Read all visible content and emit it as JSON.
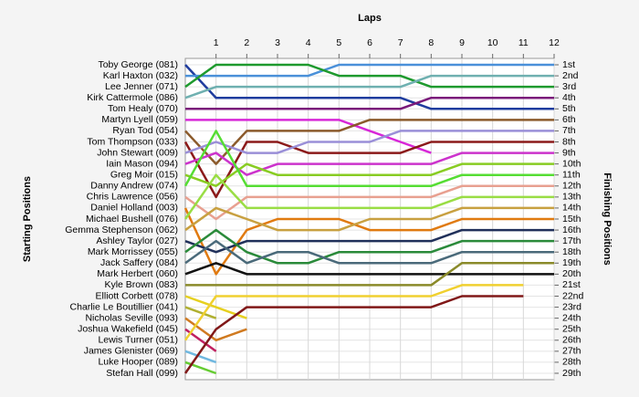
{
  "chart_data": {
    "type": "lap",
    "title": "Laps",
    "y_label_left": "Starting Positions",
    "y_label_right": "Finishing Positions",
    "x": [
      0,
      1,
      2,
      3,
      4,
      5,
      6,
      7,
      8,
      9,
      10,
      11,
      12
    ],
    "xlim": [
      0,
      12
    ],
    "xticks": [
      1,
      2,
      3,
      4,
      5,
      6,
      7,
      8,
      9,
      10,
      11,
      12
    ],
    "ylim": [
      1,
      29
    ],
    "grid": true,
    "positions": [
      "1st",
      "2nd",
      "3rd",
      "4th",
      "5th",
      "6th",
      "7th",
      "8th",
      "9th",
      "10th",
      "11th",
      "12th",
      "13th",
      "14th",
      "15th",
      "16th",
      "17th",
      "18th",
      "19th",
      "20th",
      "21st",
      "22nd",
      "23rd",
      "24th",
      "25th",
      "26th",
      "27th",
      "28th",
      "29th"
    ],
    "series": [
      {
        "name": "Toby George (081)",
        "color": "#1f3c9e",
        "values": [
          1,
          4,
          4,
          4,
          4,
          4,
          4,
          4,
          5,
          5,
          5,
          5,
          5
        ]
      },
      {
        "name": "Karl Haxton (032)",
        "color": "#4a90d9",
        "values": [
          2,
          2,
          2,
          2,
          2,
          1,
          1,
          1,
          1,
          1,
          1,
          1,
          1
        ]
      },
      {
        "name": "Lee Jenner (071)",
        "color": "#1e9a2e",
        "values": [
          3,
          1,
          1,
          1,
          1,
          2,
          2,
          2,
          3,
          3,
          3,
          3,
          3
        ]
      },
      {
        "name": "Kirk Cattermole (086)",
        "color": "#6fb0b0",
        "values": [
          4,
          3,
          3,
          3,
          3,
          3,
          3,
          3,
          2,
          2,
          2,
          2,
          2
        ]
      },
      {
        "name": "Tom Healy (070)",
        "color": "#7a1a7a",
        "values": [
          5,
          5,
          5,
          5,
          5,
          5,
          5,
          5,
          4,
          4,
          4,
          4,
          4
        ]
      },
      {
        "name": "Martyn Lyell (059)",
        "color": "#d827d8",
        "values": [
          6,
          6,
          6,
          6,
          6,
          6,
          7,
          8,
          9,
          null,
          null,
          null,
          null
        ]
      },
      {
        "name": "Ryan Tod (054)",
        "color": "#8b5a2b",
        "values": [
          7,
          10,
          7,
          7,
          7,
          7,
          6,
          6,
          6,
          6,
          6,
          6,
          6
        ]
      },
      {
        "name": "Tom Thompson (033)",
        "color": "#8b1a1a",
        "values": [
          8,
          13,
          8,
          8,
          9,
          9,
          9,
          9,
          8,
          8,
          8,
          8,
          8
        ]
      },
      {
        "name": "John Stewart (009)",
        "color": "#9a8fd8",
        "values": [
          9,
          8,
          9,
          9,
          8,
          8,
          8,
          7,
          7,
          7,
          7,
          7,
          7
        ]
      },
      {
        "name": "Iain Mason (094)",
        "color": "#cc33cc",
        "values": [
          10,
          9,
          11,
          10,
          10,
          10,
          10,
          10,
          10,
          9,
          9,
          9,
          9
        ]
      },
      {
        "name": "Greg Moir (015)",
        "color": "#88cc22",
        "values": [
          11,
          12,
          10,
          11,
          11,
          11,
          11,
          11,
          11,
          10,
          10,
          10,
          10
        ]
      },
      {
        "name": "Danny Andrew (074)",
        "color": "#55dd33",
        "values": [
          12,
          7,
          12,
          12,
          12,
          12,
          12,
          12,
          12,
          11,
          11,
          11,
          11
        ]
      },
      {
        "name": "Chris Lawrence (056)",
        "color": "#e8a090",
        "values": [
          13,
          15,
          13,
          13,
          13,
          13,
          13,
          13,
          13,
          12,
          12,
          12,
          12
        ]
      },
      {
        "name": "Daniel Holland (003)",
        "color": "#e07a10",
        "values": [
          14,
          20,
          16,
          15,
          15,
          15,
          16,
          16,
          16,
          15,
          15,
          15,
          15
        ]
      },
      {
        "name": "Michael Bushell (076)",
        "color": "#99dd44",
        "values": [
          15,
          11,
          14,
          14,
          14,
          14,
          14,
          14,
          14,
          13,
          13,
          13,
          13
        ]
      },
      {
        "name": "Gemma Stephenson (062)",
        "color": "#c8a040",
        "values": [
          16,
          14,
          15,
          16,
          16,
          16,
          15,
          15,
          15,
          14,
          14,
          14,
          14
        ]
      },
      {
        "name": "Ashley Taylor (027)",
        "color": "#20305a",
        "values": [
          17,
          18,
          17,
          17,
          17,
          17,
          17,
          17,
          17,
          16,
          16,
          16,
          16
        ]
      },
      {
        "name": "Mark Morrissey (055)",
        "color": "#2a8a3a",
        "values": [
          18,
          16,
          18,
          19,
          19,
          18,
          18,
          18,
          18,
          17,
          17,
          17,
          17
        ]
      },
      {
        "name": "Jack Saffery (084)",
        "color": "#4a6a7a",
        "values": [
          19,
          17,
          19,
          18,
          18,
          19,
          19,
          19,
          19,
          18,
          18,
          18,
          18
        ]
      },
      {
        "name": "Mark Herbert (060)",
        "color": "#111111",
        "values": [
          20,
          19,
          20,
          20,
          20,
          20,
          20,
          20,
          20,
          20,
          20,
          20,
          20
        ]
      },
      {
        "name": "Kyle Brown (083)",
        "color": "#8a8a2a",
        "values": [
          21,
          21,
          21,
          21,
          21,
          21,
          21,
          21,
          21,
          19,
          19,
          19,
          19
        ]
      },
      {
        "name": "Elliott Corbett (078)",
        "color": "#e6d020",
        "values": [
          22,
          23,
          24,
          null,
          null,
          null,
          null,
          null,
          null,
          null,
          null,
          null,
          null
        ]
      },
      {
        "name": "Charlie Le Boutillier (041)",
        "color": "#b0b030",
        "values": [
          23,
          24,
          null,
          null,
          null,
          null,
          null,
          null,
          null,
          null,
          null,
          null,
          null
        ]
      },
      {
        "name": "Nicholas Seville (093)",
        "color": "#d07a20",
        "values": [
          24,
          26,
          25,
          null,
          null,
          null,
          null,
          null,
          null,
          null,
          null,
          null,
          null
        ]
      },
      {
        "name": "Joshua Wakefield (045)",
        "color": "#c02060",
        "values": [
          25,
          27,
          null,
          null,
          null,
          null,
          null,
          null,
          null,
          null,
          null,
          null,
          null
        ]
      },
      {
        "name": "Lewis Turner (051)",
        "color": "#f0d030",
        "values": [
          26,
          22,
          22,
          22,
          22,
          22,
          22,
          22,
          22,
          21,
          21,
          21,
          null
        ]
      },
      {
        "name": "James Glenister (069)",
        "color": "#70b8e0",
        "values": [
          27,
          28,
          null,
          null,
          null,
          null,
          null,
          null,
          null,
          null,
          null,
          null,
          null
        ]
      },
      {
        "name": "Luke Hooper (089)",
        "color": "#66cc33",
        "values": [
          28,
          29,
          null,
          null,
          null,
          null,
          null,
          null,
          null,
          null,
          null,
          null,
          null
        ]
      },
      {
        "name": "Stefan Hall (099)",
        "color": "#801818",
        "values": [
          29,
          25,
          23,
          23,
          23,
          23,
          23,
          23,
          23,
          22,
          22,
          22,
          null
        ]
      }
    ]
  }
}
